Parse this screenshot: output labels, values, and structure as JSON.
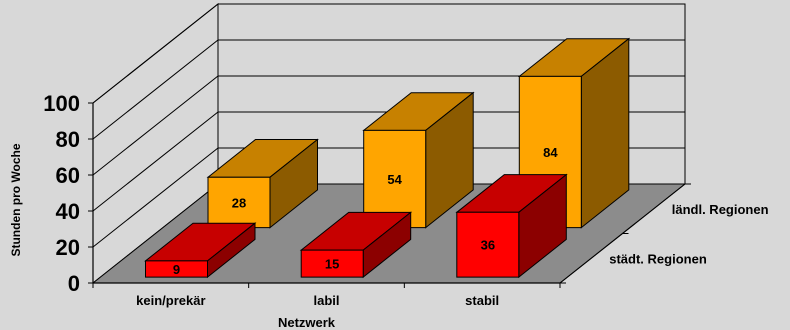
{
  "chart_data": {
    "type": "bar",
    "variant": "3d-column-series-depth",
    "categories": [
      "kein/prekär",
      "labil",
      "stabil"
    ],
    "series": [
      {
        "name": "städt. Regionen",
        "values": [
          9,
          15,
          36
        ],
        "color": "#ff0000"
      },
      {
        "name": "ländl. Regionen",
        "values": [
          28,
          54,
          84
        ],
        "color": "#ffa500"
      }
    ],
    "xlabel": "Netzwerk",
    "ylabel": "Stunden pro Woche",
    "ylim": [
      0,
      100
    ],
    "yticks": [
      "0",
      "20",
      "40",
      "60",
      "80",
      "100"
    ],
    "grid": true,
    "legend": "none",
    "colors": {
      "background": "#d8d8d8",
      "back_wall": "#d8d8d8",
      "floor": "#8c8c8c",
      "grid": "#000000"
    }
  }
}
